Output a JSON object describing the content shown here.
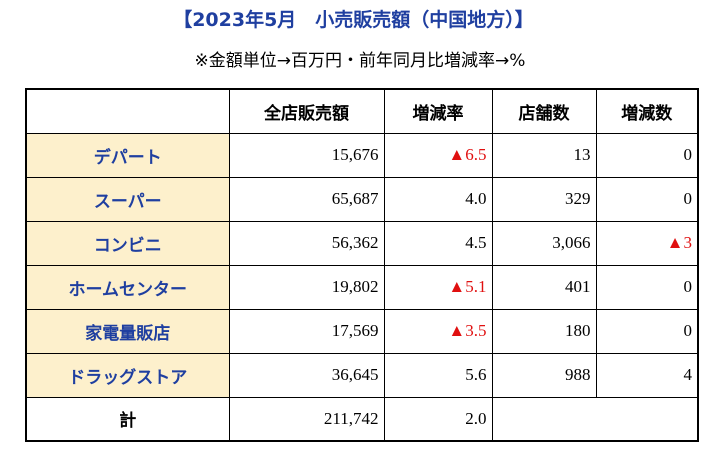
{
  "title": "【2023年5月　小売販売額（中国地方）】",
  "subtitle": "※金額単位→百万円・前年同月比増減率→%",
  "headers": [
    "",
    "全店販売額",
    "増減率",
    "店舗数",
    "増減数"
  ],
  "rows": [
    {
      "category": "デパート",
      "sales": "15,676",
      "rate": "▲6.5",
      "stores": "13",
      "change": "0"
    },
    {
      "category": "スーパー",
      "sales": "65,687",
      "rate": "4.0",
      "stores": "329",
      "change": "0"
    },
    {
      "category": "コンビニ",
      "sales": "56,362",
      "rate": "4.5",
      "stores": "3,066",
      "change": "▲3"
    },
    {
      "category": "ホームセンター",
      "sales": "19,802",
      "rate": "▲5.1",
      "stores": "401",
      "change": "0"
    },
    {
      "category": "家電量販店",
      "sales": "17,569",
      "rate": "▲3.5",
      "stores": "180",
      "change": "0"
    },
    {
      "category": "ドラッグストア",
      "sales": "36,645",
      "rate": "5.6",
      "stores": "988",
      "change": "4"
    }
  ],
  "total": {
    "label": "計",
    "sales": "211,742",
    "rate": "2.0"
  },
  "colors": {
    "title": "#1f3fa0",
    "category_bg": "#fdf0cc",
    "negative": "#e01010"
  }
}
